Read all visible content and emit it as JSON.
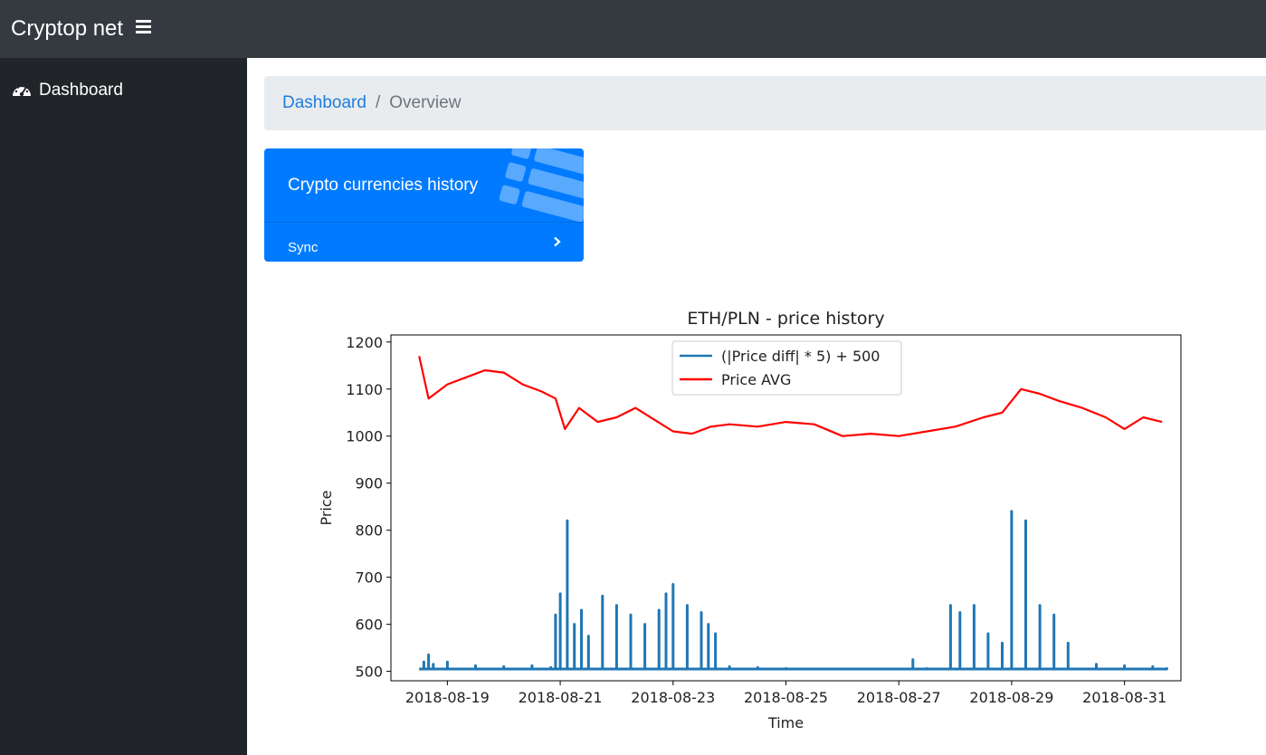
{
  "navbar": {
    "brand": "Cryptop net",
    "menu_icon": "hamburger-icon"
  },
  "sidebar": {
    "items": [
      {
        "label": "Dashboard",
        "icon": "dashboard-gauge-icon"
      }
    ]
  },
  "breadcrumb": {
    "link": "Dashboard",
    "separator": "/",
    "current": "Overview"
  },
  "card": {
    "title": "Crypto currencies history",
    "footer_label": "Sync",
    "icon": "list-icon",
    "footer_icon": "chevron-right-icon",
    "color": "#007bff"
  },
  "chart_data": {
    "type": "line",
    "title": "ETH/PLN - price history",
    "xlabel": "Time",
    "ylabel": "Price",
    "ylim": [
      480,
      1215
    ],
    "yticks": [
      500,
      600,
      700,
      800,
      900,
      1000,
      1100,
      1200
    ],
    "xticks": [
      "2018-08-19",
      "2018-08-21",
      "2018-08-23",
      "2018-08-25",
      "2018-08-27",
      "2018-08-29",
      "2018-08-31"
    ],
    "xlim": [
      "2018-08-18",
      "2018-09-01"
    ],
    "legend_position": "upper-center",
    "grid": false,
    "series": [
      {
        "name": "(|Price diff| * 5) + 500",
        "color": "#1f77b4",
        "style": "spikes",
        "x": [
          "2018-08-18 12:00",
          "2018-08-18 14:00",
          "2018-08-18 16:00",
          "2018-08-18 18:00",
          "2018-08-19 00:00",
          "2018-08-19 12:00",
          "2018-08-20 00:00",
          "2018-08-20 12:00",
          "2018-08-20 20:00",
          "2018-08-20 22:00",
          "2018-08-21 00:00",
          "2018-08-21 03:00",
          "2018-08-21 06:00",
          "2018-08-21 09:00",
          "2018-08-21 12:00",
          "2018-08-21 18:00",
          "2018-08-22 00:00",
          "2018-08-22 06:00",
          "2018-08-22 12:00",
          "2018-08-22 18:00",
          "2018-08-22 21:00",
          "2018-08-23 00:00",
          "2018-08-23 06:00",
          "2018-08-23 12:00",
          "2018-08-23 15:00",
          "2018-08-23 18:00",
          "2018-08-24 00:00",
          "2018-08-24 12:00",
          "2018-08-25 00:00",
          "2018-08-25 12:00",
          "2018-08-26 00:00",
          "2018-08-26 12:00",
          "2018-08-27 00:00",
          "2018-08-27 06:00",
          "2018-08-27 12:00",
          "2018-08-27 18:00",
          "2018-08-27 22:00",
          "2018-08-28 02:00",
          "2018-08-28 08:00",
          "2018-08-28 14:00",
          "2018-08-28 20:00",
          "2018-08-29 00:00",
          "2018-08-29 06:00",
          "2018-08-29 12:00",
          "2018-08-29 18:00",
          "2018-08-30 00:00",
          "2018-08-30 12:00",
          "2018-08-31 00:00",
          "2018-08-31 12:00",
          "2018-08-31 18:00"
        ],
        "values": [
          505,
          520,
          535,
          515,
          520,
          512,
          510,
          512,
          508,
          620,
          665,
          820,
          600,
          630,
          575,
          660,
          640,
          620,
          600,
          630,
          665,
          685,
          640,
          625,
          600,
          580,
          510,
          508,
          506,
          505,
          505,
          505,
          505,
          525,
          506,
          505,
          640,
          625,
          640,
          580,
          560,
          840,
          820,
          640,
          620,
          560,
          515,
          512,
          510,
          506
        ]
      },
      {
        "name": "Price AVG",
        "color": "#ff0000",
        "style": "line",
        "x": [
          "2018-08-18 12:00",
          "2018-08-18 16:00",
          "2018-08-19 00:00",
          "2018-08-19 08:00",
          "2018-08-19 16:00",
          "2018-08-20 00:00",
          "2018-08-20 08:00",
          "2018-08-20 16:00",
          "2018-08-20 22:00",
          "2018-08-21 02:00",
          "2018-08-21 08:00",
          "2018-08-21 16:00",
          "2018-08-22 00:00",
          "2018-08-22 08:00",
          "2018-08-22 16:00",
          "2018-08-23 00:00",
          "2018-08-23 08:00",
          "2018-08-23 16:00",
          "2018-08-24 00:00",
          "2018-08-24 12:00",
          "2018-08-25 00:00",
          "2018-08-25 12:00",
          "2018-08-26 00:00",
          "2018-08-26 12:00",
          "2018-08-27 00:00",
          "2018-08-27 12:00",
          "2018-08-28 00:00",
          "2018-08-28 12:00",
          "2018-08-28 20:00",
          "2018-08-29 04:00",
          "2018-08-29 12:00",
          "2018-08-29 20:00",
          "2018-08-30 06:00",
          "2018-08-30 16:00",
          "2018-08-31 00:00",
          "2018-08-31 08:00",
          "2018-08-31 16:00"
        ],
        "values": [
          1170,
          1080,
          1110,
          1125,
          1140,
          1135,
          1110,
          1095,
          1080,
          1015,
          1060,
          1030,
          1040,
          1060,
          1035,
          1010,
          1005,
          1020,
          1025,
          1020,
          1030,
          1025,
          1000,
          1005,
          1000,
          1010,
          1020,
          1040,
          1050,
          1100,
          1090,
          1075,
          1060,
          1040,
          1015,
          1040,
          1030
        ]
      }
    ]
  }
}
